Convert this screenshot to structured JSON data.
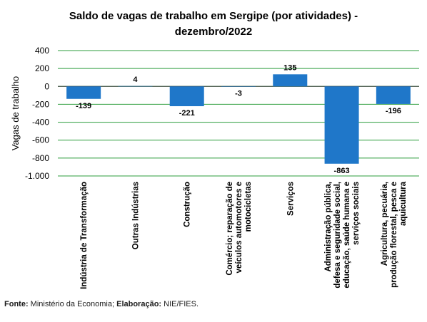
{
  "chart_data": {
    "type": "bar",
    "title_lines": [
      "Saldo de vagas de trabalho  em Sergipe (por atividades) -",
      "dezembro/2022"
    ],
    "ylabel": "Vagas de trabalho",
    "xlabel": "",
    "ylim": [
      -1000,
      400
    ],
    "yticks": [
      400,
      200,
      0,
      -200,
      -400,
      -600,
      -800,
      -1000
    ],
    "ytick_labels": [
      "400",
      "200",
      "0",
      "-200",
      "-400",
      "-600",
      "-800",
      "-1.000"
    ],
    "grid": true,
    "bar_color": "#1f77c9",
    "grid_color": "#2e9e3e",
    "categories": [
      [
        "Indústria de Transformação"
      ],
      [
        "Outras Indústrias"
      ],
      [
        "Construção"
      ],
      [
        "Comércio; reparação de",
        "veículos automotores e",
        "motocicletas"
      ],
      [
        "Serviços"
      ],
      [
        "Administração pública,",
        "defesa e seguridade social,",
        "educação, saúde humana e",
        "serviços sociais"
      ],
      [
        "Agricultura, pecuária,",
        "produção florestal, pesca e",
        "aquicultura"
      ]
    ],
    "values": [
      -139,
      4,
      -221,
      -3,
      135,
      -863,
      -196
    ],
    "data_labels": [
      "-139",
      "4",
      "-221",
      "-3",
      "135",
      "-863",
      "-196"
    ]
  },
  "footer": {
    "source_label": "Fonte:",
    "source_text": " Ministério da Economia; ",
    "elab_label": "Elaboração:",
    "elab_text": " NIE/FIES."
  }
}
